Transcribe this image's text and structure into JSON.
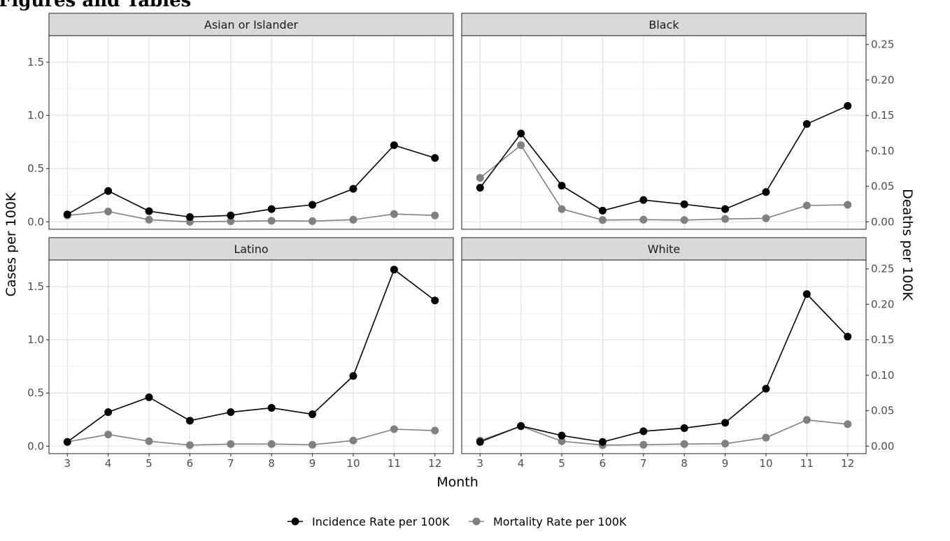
{
  "page": {
    "heading": "Figures and Tables"
  },
  "chart_data": {
    "type": "line",
    "xlabel": "Month",
    "ylabel": "Cases per 100K",
    "y2label": "Deaths per 100K",
    "x": [
      3,
      4,
      5,
      6,
      7,
      8,
      9,
      10,
      11,
      12
    ],
    "x_ticks": [
      "3",
      "4",
      "5",
      "6",
      "7",
      "8",
      "9",
      "10",
      "11",
      "12"
    ],
    "y_ticks": [
      "0.0",
      "0.5",
      "1.0",
      "1.5"
    ],
    "y2_ticks": [
      "0.00",
      "0.05",
      "0.10",
      "0.15",
      "0.20",
      "0.25"
    ],
    "ylim": [
      -0.07,
      1.75
    ],
    "y2lim": [
      -0.0105,
      0.2625
    ],
    "grid": true,
    "legend_position": "bottom",
    "legend": [
      {
        "name": "Incidence Rate per 100K",
        "color": "#000000",
        "axis": "left"
      },
      {
        "name": "Mortality Rate per 100K",
        "color": "#808080",
        "axis": "right"
      }
    ],
    "panels": [
      {
        "title": "Asian or Islander",
        "incidence": [
          0.07,
          0.29,
          0.1,
          0.045,
          0.06,
          0.12,
          0.16,
          0.31,
          0.72,
          0.6
        ],
        "mortality": [
          0.009,
          0.0145,
          0.003,
          0.0,
          0.0008,
          0.0015,
          0.001,
          0.003,
          0.011,
          0.009
        ]
      },
      {
        "title": "Black",
        "incidence": [
          0.32,
          0.83,
          0.34,
          0.105,
          0.205,
          0.165,
          0.12,
          0.28,
          0.92,
          1.09
        ],
        "mortality": [
          0.062,
          0.108,
          0.018,
          0.0025,
          0.003,
          0.0025,
          0.004,
          0.005,
          0.023,
          0.024
        ]
      },
      {
        "title": "Latino",
        "incidence": [
          0.04,
          0.32,
          0.46,
          0.24,
          0.32,
          0.36,
          0.3,
          0.66,
          1.66,
          1.37
        ],
        "mortality": [
          0.006,
          0.0165,
          0.007,
          0.0015,
          0.003,
          0.003,
          0.002,
          0.008,
          0.024,
          0.022
        ]
      },
      {
        "title": "White",
        "incidence": [
          0.04,
          0.19,
          0.1,
          0.04,
          0.14,
          0.17,
          0.22,
          0.54,
          1.43,
          1.03
        ],
        "mortality": [
          0.008,
          0.028,
          0.007,
          0.0015,
          0.002,
          0.003,
          0.0035,
          0.012,
          0.037,
          0.031
        ]
      }
    ]
  }
}
